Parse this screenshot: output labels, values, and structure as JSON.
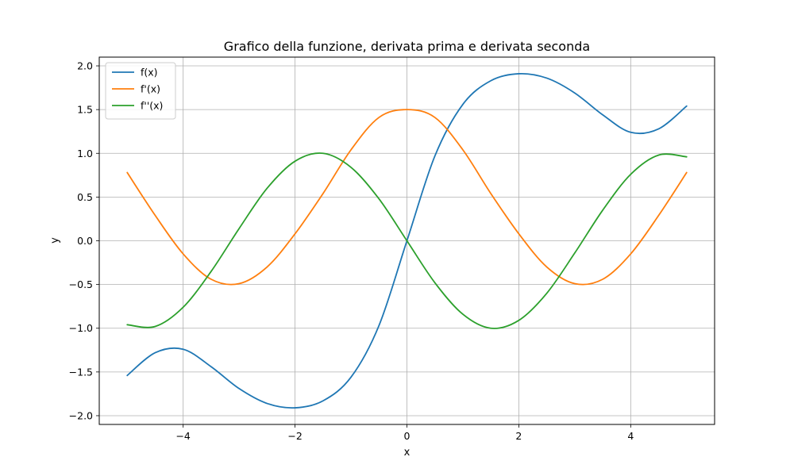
{
  "chart_data": {
    "type": "line",
    "title": "Grafico della funzione, derivata prima e derivata seconda",
    "xlabel": "x",
    "ylabel": "y",
    "xlim": [
      -5.5,
      5.5
    ],
    "ylim": [
      -2.1,
      2.1
    ],
    "xticks": [
      -4,
      -2,
      0,
      2,
      4
    ],
    "xtick_labels": [
      "−4",
      "−2",
      "0",
      "2",
      "4"
    ],
    "yticks": [
      -2.0,
      -1.5,
      -1.0,
      -0.5,
      0.0,
      0.5,
      1.0,
      1.5,
      2.0
    ],
    "ytick_labels": [
      "−2.0",
      "−1.5",
      "−1.0",
      "−0.5",
      "0.0",
      "0.5",
      "1.0",
      "1.5",
      "2.0"
    ],
    "grid": true,
    "legend_position": "top-left",
    "x": [
      -5.0,
      -4.5,
      -4.0,
      -3.5,
      -3.0,
      -2.5,
      -2.0,
      -1.5,
      -1.0,
      -0.5,
      0.0,
      0.5,
      1.0,
      1.5,
      2.0,
      2.5,
      3.0,
      3.5,
      4.0,
      4.5,
      5.0
    ],
    "series": [
      {
        "name": "f(x)",
        "color": "#1f77b4",
        "values": [
          -1.54,
          -1.28,
          -1.24,
          -1.44,
          -1.69,
          -1.86,
          -1.91,
          -1.83,
          -1.56,
          -0.97,
          0.0,
          0.97,
          1.56,
          1.83,
          1.91,
          1.86,
          1.69,
          1.44,
          1.24,
          1.28,
          1.54
        ]
      },
      {
        "name": "f'(x)",
        "color": "#ff7f0e",
        "values": [
          0.78,
          0.29,
          -0.15,
          -0.44,
          -0.49,
          -0.3,
          0.08,
          0.54,
          1.04,
          1.41,
          1.5,
          1.41,
          1.04,
          0.54,
          0.08,
          -0.3,
          -0.49,
          -0.44,
          -0.15,
          0.29,
          0.78
        ]
      },
      {
        "name": "f''(x)",
        "color": "#2ca02c",
        "values": [
          -0.96,
          -0.98,
          -0.76,
          -0.35,
          0.14,
          0.6,
          0.91,
          1.0,
          0.84,
          0.48,
          0.0,
          -0.48,
          -0.84,
          -1.0,
          -0.91,
          -0.6,
          -0.14,
          0.35,
          0.76,
          0.98,
          0.96
        ]
      }
    ]
  }
}
